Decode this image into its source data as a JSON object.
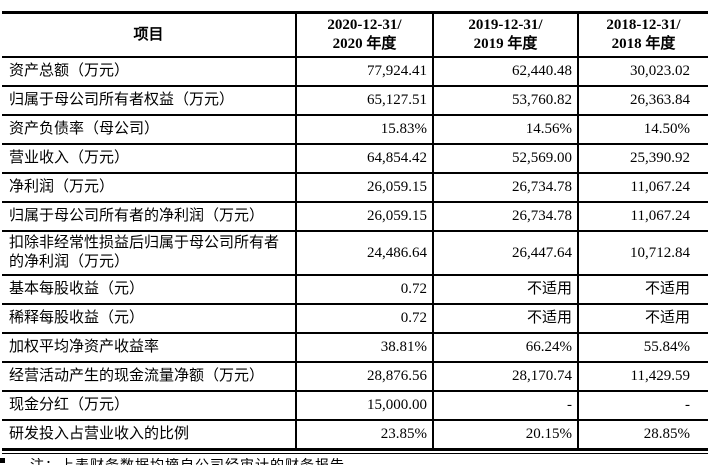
{
  "table": {
    "item_header": "项目",
    "periods": [
      {
        "line1": "2020-12-31/",
        "line2": "2020 年度"
      },
      {
        "line1": "2019-12-31/",
        "line2": "2019 年度"
      },
      {
        "line1": "2018-12-31/",
        "line2": "2018 年度"
      }
    ],
    "rows": [
      {
        "label": "资产总额（万元）",
        "values": [
          "77,924.41",
          "62,440.48",
          "30,023.02"
        ]
      },
      {
        "label": "归属于母公司所有者权益（万元）",
        "values": [
          "65,127.51",
          "53,760.82",
          "26,363.84"
        ]
      },
      {
        "label": "资产负债率（母公司）",
        "values": [
          "15.83%",
          "14.56%",
          "14.50%"
        ]
      },
      {
        "label": "营业收入（万元）",
        "values": [
          "64,854.42",
          "52,569.00",
          "25,390.92"
        ]
      },
      {
        "label": "净利润（万元）",
        "values": [
          "26,059.15",
          "26,734.78",
          "11,067.24"
        ]
      },
      {
        "label": "归属于母公司所有者的净利润（万元）",
        "values": [
          "26,059.15",
          "26,734.78",
          "11,067.24"
        ]
      },
      {
        "label": "扣除非经常性损益后归属于母公司所有者的净利润（万元）",
        "values": [
          "24,486.64",
          "26,447.64",
          "10,712.84"
        ]
      },
      {
        "label": "基本每股收益（元）",
        "values": [
          "0.72",
          "不适用",
          "不适用"
        ]
      },
      {
        "label": "稀释每股收益（元）",
        "values": [
          "0.72",
          "不适用",
          "不适用"
        ]
      },
      {
        "label": "加权平均净资产收益率",
        "values": [
          "38.81%",
          "66.24%",
          "55.84%"
        ]
      },
      {
        "label": "经营活动产生的现金流量净额（万元）",
        "values": [
          "28,876.56",
          "28,170.74",
          "11,429.59"
        ]
      },
      {
        "label": "现金分红（万元）",
        "values": [
          "15,000.00",
          "-",
          "-"
        ]
      },
      {
        "label": "研发投入占营业收入的比例",
        "values": [
          "23.85%",
          "20.15%",
          "28.85%"
        ]
      }
    ]
  },
  "footnote": {
    "text": "注：上表财务数据均摘自公司经审计的财务报告"
  }
}
